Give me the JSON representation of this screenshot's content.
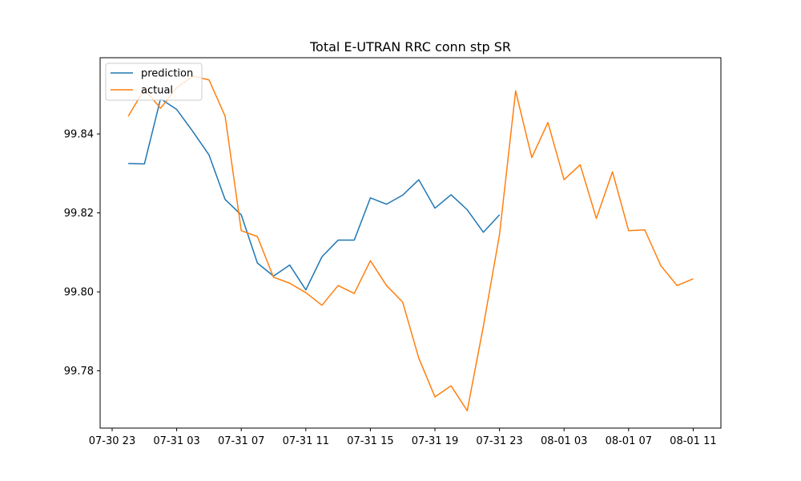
{
  "chart_data": {
    "type": "line",
    "title": "Total E-UTRAN RRC conn stp SR",
    "xlabel": "",
    "ylabel": "",
    "x_axis": "time (hourly)",
    "x_ticks": [
      "07-30 23",
      "07-31 03",
      "07-31 07",
      "07-31 11",
      "07-31 15",
      "07-31 19",
      "07-31 23",
      "08-01 03",
      "08-01 07",
      "08-01 11"
    ],
    "y_ticks": [
      "99.78",
      "99.80",
      "99.82",
      "99.84"
    ],
    "ylim": [
      99.7655,
      99.8593
    ],
    "legend_position": "upper-left",
    "series": [
      {
        "name": "prediction",
        "color": "#1f77b4",
        "x": [
          "07-31 00",
          "07-31 01",
          "07-31 02",
          "07-31 03",
          "07-31 04",
          "07-31 05",
          "07-31 06",
          "07-31 07",
          "07-31 08",
          "07-31 09",
          "07-31 10",
          "07-31 11",
          "07-31 12",
          "07-31 13",
          "07-31 14",
          "07-31 15",
          "07-31 16",
          "07-31 17",
          "07-31 18",
          "07-31 19",
          "07-31 20",
          "07-31 21",
          "07-31 22",
          "07-31 23"
        ],
        "values": [
          99.8325,
          99.8324,
          99.8489,
          99.8462,
          99.8406,
          99.8347,
          99.8234,
          99.8195,
          99.8073,
          99.804,
          99.8068,
          99.8005,
          99.8089,
          99.8131,
          99.8131,
          99.8238,
          99.8222,
          99.8245,
          99.8284,
          99.8212,
          99.8246,
          99.8208,
          99.8151,
          99.8195
        ]
      },
      {
        "name": "actual",
        "color": "#ff7f0e",
        "x": [
          "07-31 00",
          "07-31 01",
          "07-31 02",
          "07-31 03",
          "07-31 04",
          "07-31 05",
          "07-31 06",
          "07-31 07",
          "07-31 08",
          "07-31 09",
          "07-31 10",
          "07-31 11",
          "07-31 12",
          "07-31 13",
          "07-31 14",
          "07-31 15",
          "07-31 16",
          "07-31 17",
          "07-31 18",
          "07-31 19",
          "07-31 20",
          "07-31 21",
          "07-31 22",
          "07-31 23",
          "08-01 00",
          "08-01 01",
          "08-01 02",
          "08-01 03",
          "08-01 04",
          "08-01 05",
          "08-01 06",
          "08-01 07",
          "08-01 08",
          "08-01 09",
          "08-01 10",
          "08-01 11"
        ],
        "values": [
          99.8445,
          99.8513,
          99.8465,
          99.8517,
          99.8546,
          99.8537,
          99.8445,
          99.8155,
          99.814,
          99.8037,
          99.8022,
          99.7998,
          99.7966,
          99.8016,
          99.7996,
          99.8079,
          99.8016,
          99.7974,
          99.7832,
          99.7734,
          99.7762,
          99.7699,
          99.7913,
          99.8145,
          99.8509,
          99.834,
          99.8429,
          99.8284,
          99.8322,
          99.8186,
          99.8304,
          99.8155,
          99.8157,
          99.8066,
          99.8016,
          99.8033
        ]
      }
    ]
  }
}
